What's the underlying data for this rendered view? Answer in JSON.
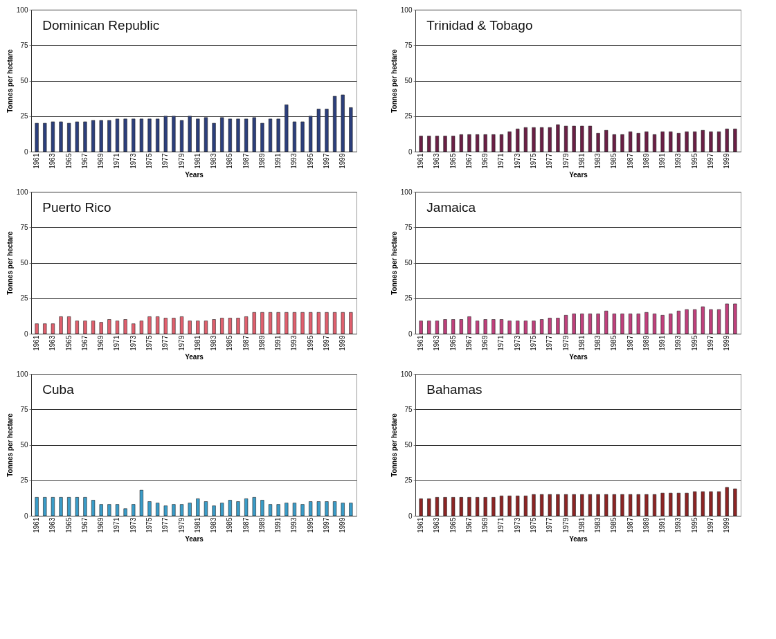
{
  "chart_data": [
    {
      "type": "bar",
      "title": "Dominican Republic",
      "xlabel": "Years",
      "ylabel": "Tonnes per hectare",
      "categories": [
        "1961",
        null,
        "1963",
        null,
        "1965",
        null,
        "1967",
        null,
        "1969",
        null,
        "1971",
        null,
        "1973",
        null,
        "1975",
        null,
        "1977",
        null,
        "1979",
        null,
        "1981",
        null,
        "1983",
        null,
        "1985",
        null,
        "1987",
        null,
        "1989",
        null,
        "1991",
        null,
        "1993",
        null,
        "1995",
        null,
        "1997",
        null,
        "1999",
        null
      ],
      "values": [
        20,
        20,
        21,
        21,
        20,
        21,
        21,
        22,
        22,
        22,
        23,
        23,
        23,
        23,
        23,
        23,
        25,
        25,
        22,
        25,
        23,
        24,
        20,
        24,
        23,
        23,
        23,
        24,
        20,
        23,
        23,
        33,
        21,
        21,
        25,
        30,
        30,
        39,
        40,
        31
      ],
      "color": "#2c3f7c",
      "ylim": [
        0,
        100
      ],
      "yticks": [
        0,
        25,
        50,
        75,
        100
      ],
      "grid": "y"
    },
    {
      "type": "bar",
      "title": "Trinidad & Tobago",
      "xlabel": "Years",
      "ylabel": "Tonnes per hectare",
      "categories": [
        "1961",
        null,
        "1963",
        null,
        "1965",
        null,
        "1967",
        null,
        "1969",
        null,
        "1971",
        null,
        "1973",
        null,
        "1975",
        null,
        "1977",
        null,
        "1979",
        null,
        "1981",
        null,
        "1983",
        null,
        "1985",
        null,
        "1987",
        null,
        "1989",
        null,
        "1991",
        null,
        "1993",
        null,
        "1995",
        null,
        "1997",
        null,
        "1999",
        null
      ],
      "values": [
        11,
        11,
        11,
        11,
        11,
        12,
        12,
        12,
        12,
        12,
        12,
        14,
        16,
        17,
        17,
        17,
        17,
        19,
        18,
        18,
        18,
        18,
        13,
        15,
        12,
        12,
        14,
        13,
        14,
        12,
        14,
        14,
        13,
        14,
        14,
        15,
        14,
        14,
        16,
        16
      ],
      "color": "#6a1f45",
      "ylim": [
        0,
        100
      ],
      "yticks": [
        0,
        25,
        50,
        75,
        100
      ],
      "grid": "y"
    },
    {
      "type": "bar",
      "title": "Puerto Rico",
      "xlabel": "Years",
      "ylabel": "Tonnes per hectare",
      "categories": [
        "1961",
        null,
        "1963",
        null,
        "1965",
        null,
        "1967",
        null,
        "1969",
        null,
        "1971",
        null,
        "1973",
        null,
        "1975",
        null,
        "1977",
        null,
        "1979",
        null,
        "1981",
        null,
        "1983",
        null,
        "1985",
        null,
        "1987",
        null,
        "1989",
        null,
        "1991",
        null,
        "1993",
        null,
        "1995",
        null,
        "1997",
        null,
        "1999",
        null
      ],
      "values": [
        7,
        7,
        7,
        12,
        12,
        9,
        9,
        9,
        8,
        10,
        9,
        10,
        7,
        9,
        12,
        12,
        11,
        11,
        12,
        9,
        9,
        9,
        10,
        11,
        11,
        11,
        12,
        15,
        15,
        15,
        15,
        15,
        15,
        15,
        15,
        15,
        15,
        15,
        15,
        15
      ],
      "color": "#e0606e",
      "ylim": [
        0,
        100
      ],
      "yticks": [
        0,
        25,
        50,
        75,
        100
      ],
      "grid": "y"
    },
    {
      "type": "bar",
      "title": "Jamaica",
      "xlabel": "Years",
      "ylabel": "Tonnes per hectare",
      "categories": [
        "1961",
        null,
        "1963",
        null,
        "1965",
        null,
        "1967",
        null,
        "1969",
        null,
        "1971",
        null,
        "1973",
        null,
        "1975",
        null,
        "1977",
        null,
        "1979",
        null,
        "1981",
        null,
        "1983",
        null,
        "1985",
        null,
        "1987",
        null,
        "1989",
        null,
        "1991",
        null,
        "1993",
        null,
        "1995",
        null,
        "1997",
        null,
        "1999",
        null
      ],
      "values": [
        9,
        9,
        9,
        10,
        10,
        10,
        12,
        9,
        10,
        10,
        10,
        9,
        9,
        9,
        9,
        10,
        11,
        11,
        13,
        14,
        14,
        14,
        14,
        16,
        14,
        14,
        14,
        14,
        15,
        14,
        13,
        14,
        16,
        17,
        17,
        19,
        17,
        17,
        21,
        21
      ],
      "color": "#c0407c",
      "ylim": [
        0,
        100
      ],
      "yticks": [
        0,
        25,
        50,
        75,
        100
      ],
      "grid": "y"
    },
    {
      "type": "bar",
      "title": "Cuba",
      "xlabel": "Years",
      "ylabel": "Tonnes per hectare",
      "categories": [
        "1961",
        null,
        "1963",
        null,
        "1965",
        null,
        "1967",
        null,
        "1969",
        null,
        "1971",
        null,
        "1973",
        null,
        "1975",
        null,
        "1977",
        null,
        "1979",
        null,
        "1981",
        null,
        "1983",
        null,
        "1985",
        null,
        "1987",
        null,
        "1989",
        null,
        "1991",
        null,
        "1993",
        null,
        "1995",
        null,
        "1997",
        null,
        "1999",
        null
      ],
      "values": [
        13,
        13,
        13,
        13,
        13,
        13,
        13,
        11,
        8,
        8,
        8,
        5,
        8,
        18,
        10,
        9,
        7,
        8,
        8,
        9,
        12,
        10,
        7,
        9,
        11,
        10,
        12,
        13,
        11,
        8,
        8,
        9,
        9,
        8,
        10,
        10,
        10,
        10,
        9,
        9
      ],
      "color": "#3a9cc8",
      "ylim": [
        0,
        100
      ],
      "yticks": [
        0,
        25,
        50,
        75,
        100
      ],
      "grid": "y"
    },
    {
      "type": "bar",
      "title": "Bahamas",
      "xlabel": "Years",
      "ylabel": "Tonnes per hectare",
      "categories": [
        "1961",
        null,
        "1963",
        null,
        "1965",
        null,
        "1967",
        null,
        "1969",
        null,
        "1971",
        null,
        "1973",
        null,
        "1975",
        null,
        "1977",
        null,
        "1979",
        null,
        "1981",
        null,
        "1983",
        null,
        "1985",
        null,
        "1987",
        null,
        "1989",
        null,
        "1991",
        null,
        "1993",
        null,
        "1995",
        null,
        "1997",
        null,
        "1999",
        null
      ],
      "values": [
        12,
        12,
        13,
        13,
        13,
        13,
        13,
        13,
        13,
        13,
        14,
        14,
        14,
        14,
        15,
        15,
        15,
        15,
        15,
        15,
        15,
        15,
        15,
        15,
        15,
        15,
        15,
        15,
        15,
        15,
        16,
        16,
        16,
        16,
        17,
        17,
        17,
        17,
        20,
        19
      ],
      "color": "#8c2424",
      "ylim": [
        0,
        100
      ],
      "yticks": [
        0,
        25,
        50,
        75,
        100
      ],
      "grid": "y"
    }
  ]
}
